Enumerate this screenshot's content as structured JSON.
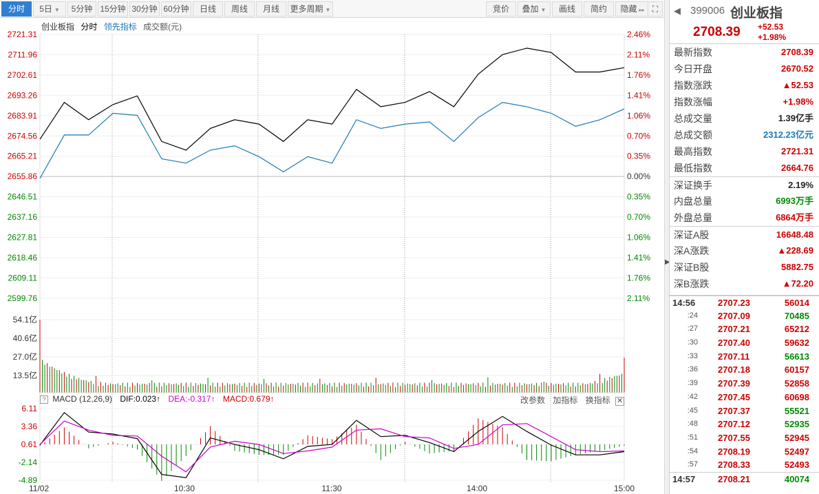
{
  "toolbar": {
    "left": [
      {
        "label": "分时",
        "active": true,
        "dd": false
      },
      {
        "label": "5日",
        "active": false,
        "dd": true
      },
      {
        "label": "5分钟",
        "active": false,
        "dd": false
      },
      {
        "label": "15分钟",
        "active": false,
        "dd": false
      },
      {
        "label": "30分钟",
        "active": false,
        "dd": false
      },
      {
        "label": "60分钟",
        "active": false,
        "dd": false
      },
      {
        "label": "日线",
        "active": false,
        "dd": false
      },
      {
        "label": "周线",
        "active": false,
        "dd": false
      },
      {
        "label": "月线",
        "active": false,
        "dd": false
      },
      {
        "label": "更多周期",
        "active": false,
        "dd": true
      }
    ],
    "right": [
      {
        "label": "竞价",
        "dd": false
      },
      {
        "label": "叠加",
        "dd": true
      },
      {
        "label": "画线",
        "dd": false
      },
      {
        "label": "简约",
        "dd": false
      },
      {
        "label": "隐藏",
        "dd": false
      }
    ],
    "hide_arrow": "▸▸",
    "fullscreen_icon": "fullscreen-icon"
  },
  "legend": {
    "name": "创业板指",
    "mode": "分时",
    "lead": "领先指标",
    "turnover": "成交额(元)"
  },
  "colors": {
    "up": "#cc0000",
    "down": "#008800",
    "price": "#000000",
    "lead": "#1a7ab8",
    "dif": "#000000",
    "dea": "#cc00cc"
  },
  "chart_data": [
    {
      "type": "line",
      "title": "创业板指 分时",
      "base": 2655.86,
      "price_ticks": [
        "2721.31",
        "2711.96",
        "2702.61",
        "2693.26",
        "2683.91",
        "2674.56",
        "2665.21",
        "2655.86",
        "2646.51",
        "2637.16",
        "2627.81",
        "2618.46",
        "2609.11",
        "2599.76"
      ],
      "pct_ticks": [
        "2.46%",
        "2.11%",
        "1.76%",
        "1.41%",
        "1.06%",
        "0.70%",
        "0.35%",
        "0.00%",
        "0.35%",
        "0.70%",
        "1.06%",
        "1.41%",
        "1.76%",
        "2.11%"
      ],
      "x_labels": [
        "11/02",
        "10:30",
        "11:30",
        "14:00",
        "15:00"
      ],
      "series": [
        {
          "name": "创业板指",
          "x": [
            0,
            10,
            20,
            30,
            40,
            50,
            60,
            70,
            80,
            90,
            100,
            110,
            120,
            130,
            140,
            150,
            160,
            170,
            180,
            190,
            200,
            210,
            220,
            230,
            240
          ],
          "values": [
            2673,
            2690,
            2682,
            2689,
            2693,
            2672,
            2668,
            2678,
            2682,
            2680,
            2672,
            2682,
            2680,
            2696,
            2688,
            2690,
            2695,
            2688,
            2703,
            2712,
            2715,
            2713,
            2704,
            2704,
            2706
          ]
        },
        {
          "name": "领先指标",
          "x": [
            0,
            10,
            20,
            30,
            40,
            50,
            60,
            70,
            80,
            90,
            100,
            110,
            120,
            130,
            140,
            150,
            160,
            170,
            180,
            190,
            200,
            210,
            220,
            230,
            240
          ],
          "values": [
            2655,
            2675,
            2675,
            2685,
            2684,
            2664,
            2662,
            2668,
            2670,
            2665,
            2658,
            2665,
            2662,
            2682,
            2678,
            2680,
            2681,
            2672,
            2683,
            2690,
            2688,
            2685,
            2679,
            2682,
            2687
          ]
        }
      ]
    },
    {
      "type": "bar",
      "title": "成交额",
      "ticks": [
        "54.1亿",
        "40.6亿",
        "27.0亿",
        "13.5亿"
      ],
      "ylim": [
        0,
        54.1
      ],
      "first_bar": 54.1,
      "last_bar": 26.0,
      "typical": 7.5
    },
    {
      "type": "line",
      "title": "MACD",
      "label": "MACD (12,26,9)",
      "dif": "DIF:0.023",
      "dea": "DEA:-0.317",
      "macd": "MACD:0.679",
      "ticks": [
        "6.11",
        "3.36",
        "0.61",
        "-2.14",
        "-4.89"
      ],
      "ylim": [
        -4.89,
        6.11
      ],
      "x": [
        0,
        10,
        20,
        30,
        40,
        50,
        60,
        70,
        80,
        90,
        100,
        110,
        120,
        130,
        140,
        150,
        160,
        170,
        180,
        190,
        200,
        210,
        220,
        230,
        240
      ],
      "dif_values": [
        0.5,
        5.5,
        2.5,
        2.2,
        1.5,
        -4.0,
        -4.5,
        1.6,
        0.6,
        -0.2,
        -1.6,
        0.3,
        0.6,
        4.3,
        1.8,
        2.0,
        0.9,
        -0.5,
        2.6,
        4.9,
        2.6,
        0.5,
        -1.0,
        -1.0,
        -0.5
      ],
      "dea_values": [
        0.6,
        4.2,
        2.8,
        2.0,
        1.9,
        -1.2,
        -3.6,
        0.2,
        1.1,
        0.6,
        -0.8,
        -0.4,
        0.2,
        2.8,
        3.0,
        1.8,
        1.6,
        0.0,
        0.6,
        3.6,
        3.8,
        1.8,
        -0.2,
        -0.5,
        -0.4
      ],
      "buttons": [
        "改参数",
        "加指标",
        "换指标"
      ]
    }
  ],
  "panel": {
    "code": "399006",
    "name": "创业板指",
    "price": "2708.39",
    "change": "+52.53",
    "change_pct": "+1.98%",
    "stats": [
      {
        "k": "最新指数",
        "v": "2708.39",
        "c": "red",
        "sep": false
      },
      {
        "k": "今日开盘",
        "v": "2670.52",
        "c": "red",
        "sep": false
      },
      {
        "k": "指数涨跌",
        "v": "▲52.53",
        "c": "red",
        "sep": false
      },
      {
        "k": "指数涨幅",
        "v": "+1.98%",
        "c": "red",
        "sep": false
      },
      {
        "k": "总成交量",
        "v": "1.39亿手",
        "c": "black",
        "sep": false
      },
      {
        "k": "总成交额",
        "v": "2312.23亿元",
        "c": "blue",
        "sep": false
      },
      {
        "k": "最高指数",
        "v": "2721.31",
        "c": "red",
        "sep": false
      },
      {
        "k": "最低指数",
        "v": "2664.76",
        "c": "red",
        "sep": false
      },
      {
        "k": "深证换手",
        "v": "2.19%",
        "c": "black",
        "sep": true
      },
      {
        "k": "内盘总量",
        "v": "6993万手",
        "c": "green",
        "sep": false
      },
      {
        "k": "外盘总量",
        "v": "6864万手",
        "c": "red",
        "sep": false
      },
      {
        "k": "深证A股",
        "v": "16648.48",
        "c": "red",
        "sep": true
      },
      {
        "k": "深A涨跌",
        "v": "▲228.69",
        "c": "red",
        "sep": false
      },
      {
        "k": "深证B股",
        "v": "5882.75",
        "c": "red",
        "sep": false
      },
      {
        "k": "深B涨跌",
        "v": "▲72.20",
        "c": "red",
        "sep": false
      }
    ],
    "ticks": [
      {
        "t": "14:56",
        "p": "2707.23",
        "v": "56014",
        "c": "red",
        "major": true
      },
      {
        "t": ":24",
        "p": "2707.09",
        "v": "70485",
        "c": "green",
        "major": false
      },
      {
        "t": ":27",
        "p": "2707.21",
        "v": "65212",
        "c": "red",
        "major": false
      },
      {
        "t": ":30",
        "p": "2707.40",
        "v": "59632",
        "c": "red",
        "major": false
      },
      {
        "t": ":33",
        "p": "2707.11",
        "v": "56613",
        "c": "green",
        "major": false
      },
      {
        "t": ":36",
        "p": "2707.18",
        "v": "60157",
        "c": "red",
        "major": false
      },
      {
        "t": ":39",
        "p": "2707.39",
        "v": "52858",
        "c": "red",
        "major": false
      },
      {
        "t": ":42",
        "p": "2707.45",
        "v": "60698",
        "c": "red",
        "major": false
      },
      {
        "t": ":45",
        "p": "2707.37",
        "v": "55521",
        "c": "green",
        "major": false
      },
      {
        "t": ":48",
        "p": "2707.12",
        "v": "52935",
        "c": "green",
        "major": false
      },
      {
        "t": ":51",
        "p": "2707.55",
        "v": "52945",
        "c": "red",
        "major": false
      },
      {
        "t": ":54",
        "p": "2708.19",
        "v": "52497",
        "c": "red",
        "major": false
      },
      {
        "t": ":57",
        "p": "2708.33",
        "v": "52493",
        "c": "red",
        "major": false
      },
      {
        "t": "14:57",
        "p": "2708.21",
        "v": "40074",
        "c": "green",
        "major": true
      }
    ]
  }
}
